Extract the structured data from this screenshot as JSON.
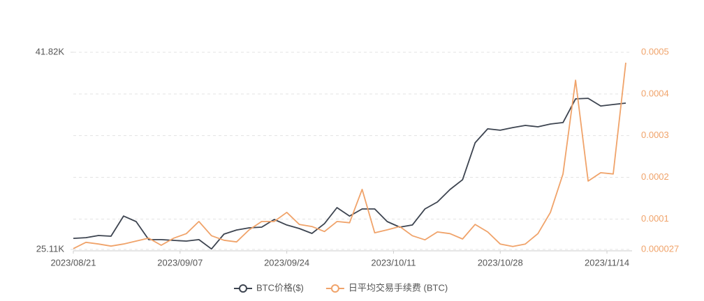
{
  "chart_data": {
    "type": "line",
    "x": [
      "2023/08/21",
      "2023/08/23",
      "2023/08/25",
      "2023/08/27",
      "2023/08/29",
      "2023/08/31",
      "2023/09/02",
      "2023/09/04",
      "2023/09/06",
      "2023/09/08",
      "2023/09/10",
      "2023/09/12",
      "2023/09/14",
      "2023/09/16",
      "2023/09/18",
      "2023/09/20",
      "2023/09/22",
      "2023/09/24",
      "2023/09/26",
      "2023/09/28",
      "2023/09/30",
      "2023/10/02",
      "2023/10/04",
      "2023/10/06",
      "2023/10/08",
      "2023/10/10",
      "2023/10/12",
      "2023/10/14",
      "2023/10/16",
      "2023/10/18",
      "2023/10/20",
      "2023/10/22",
      "2023/10/24",
      "2023/10/26",
      "2023/10/28",
      "2023/10/30",
      "2023/11/01",
      "2023/11/03",
      "2023/11/05",
      "2023/11/07",
      "2023/11/09",
      "2023/11/11",
      "2023/11/13",
      "2023/11/15",
      "2023/11/17"
    ],
    "xlim": [
      "2023/08/21",
      "2023/11/18"
    ],
    "xticks": [
      "2023/08/21",
      "2023/09/07",
      "2023/09/24",
      "2023/10/11",
      "2023/10/28",
      "2023/11/14"
    ],
    "ylim": [
      25110,
      41820
    ],
    "yticks": [
      {
        "value": 25110,
        "label": "25.11K"
      },
      {
        "value": 41820,
        "label": "41.82K"
      }
    ],
    "y2lim": [
      2.7e-05,
      0.0005
    ],
    "y2ticks": [
      2.7e-05,
      0.0001,
      0.0002,
      0.0003,
      0.0004,
      0.0005
    ],
    "series": [
      {
        "name": "BTC价格($)",
        "color": "#3d4450",
        "values": [
          26050,
          26110,
          26290,
          26230,
          27940,
          27470,
          25940,
          25940,
          25880,
          25820,
          25940,
          25150,
          26410,
          26760,
          26940,
          27000,
          27650,
          27180,
          26880,
          26470,
          27300,
          28650,
          27940,
          28540,
          28540,
          27470,
          27000,
          27180,
          28540,
          29130,
          30190,
          31020,
          34150,
          35330,
          35210,
          35440,
          35620,
          35500,
          35740,
          35860,
          37870,
          37920,
          37270,
          37390,
          37510
        ]
      },
      {
        "name": "日平均交易手续费 (BTC)",
        "color": "#f0a36a",
        "axis": "y2",
        "values": [
          2.9e-05,
          4.4e-05,
          4e-05,
          3.5e-05,
          4e-05,
          4.7e-05,
          5.4e-05,
          3.7e-05,
          5.4e-05,
          6.5e-05,
          9.4e-05,
          6e-05,
          4.9e-05,
          4.5e-05,
          7.4e-05,
          9.4e-05,
          9.4e-05,
          0.000116,
          8.7e-05,
          8.2e-05,
          7e-05,
          9.4e-05,
          9.1e-05,
          0.000171,
          6.7e-05,
          7.4e-05,
          8.2e-05,
          6e-05,
          5e-05,
          6.9e-05,
          6.5e-05,
          5.2e-05,
          8.7e-05,
          6.9e-05,
          4e-05,
          3.4e-05,
          4e-05,
          6.5e-05,
          0.000116,
          0.000208,
          0.000433,
          0.000191,
          0.000211,
          0.000208,
          0.000475
        ]
      }
    ]
  }
}
